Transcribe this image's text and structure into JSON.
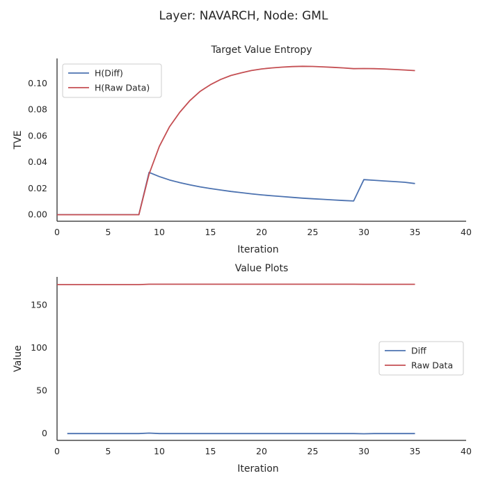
{
  "figure_title": "Layer: NAVARCH, Node: GML",
  "chart_data": [
    {
      "type": "line",
      "title": "Target Value Entropy",
      "xlabel": "Iteration",
      "ylabel": "TVE",
      "xlim": [
        0,
        40
      ],
      "ylim": [
        -0.005,
        0.119
      ],
      "xticks": [
        "0",
        "5",
        "10",
        "15",
        "20",
        "25",
        "30",
        "35",
        "40"
      ],
      "yticks": [
        "0.00",
        "0.02",
        "0.04",
        "0.06",
        "0.08",
        "0.10"
      ],
      "grid": false,
      "legend_position": "upper-left",
      "series": [
        {
          "name": "H(Diff)",
          "color": "#4c72b0",
          "x": [
            0,
            1,
            2,
            3,
            4,
            5,
            6,
            7,
            8,
            9,
            10,
            11,
            12,
            13,
            14,
            15,
            16,
            17,
            18,
            19,
            20,
            21,
            22,
            23,
            24,
            25,
            26,
            27,
            28,
            29,
            30,
            31,
            32,
            33,
            34,
            35
          ],
          "y": [
            0,
            0,
            0,
            0,
            0,
            0,
            0,
            0,
            0,
            0.0322,
            0.029,
            0.0264,
            0.0244,
            0.0227,
            0.0212,
            0.0199,
            0.0188,
            0.0177,
            0.0168,
            0.0159,
            0.0151,
            0.0144,
            0.0138,
            0.0132,
            0.0126,
            0.0121,
            0.0117,
            0.0112,
            0.0108,
            0.0104,
            0.0267,
            0.0262,
            0.0257,
            0.0252,
            0.0247,
            0.0237
          ]
        },
        {
          "name": "H(Raw Data)",
          "color": "#c44e52",
          "x": [
            0,
            1,
            2,
            3,
            4,
            5,
            6,
            7,
            8,
            9,
            10,
            11,
            12,
            13,
            14,
            15,
            16,
            17,
            18,
            19,
            20,
            21,
            22,
            23,
            24,
            25,
            26,
            27,
            28,
            29,
            30,
            31,
            32,
            33,
            34,
            35
          ],
          "y": [
            0,
            0,
            0,
            0,
            0,
            0,
            0,
            0,
            0,
            0.031,
            0.052,
            0.067,
            0.078,
            0.087,
            0.094,
            0.099,
            0.103,
            0.106,
            0.108,
            0.1098,
            0.111,
            0.1118,
            0.1124,
            0.1128,
            0.113,
            0.1129,
            0.1126,
            0.1122,
            0.1118,
            0.1112,
            0.1113,
            0.1112,
            0.111,
            0.1106,
            0.1102,
            0.1097
          ]
        }
      ]
    },
    {
      "type": "line",
      "title": "Value Plots",
      "xlabel": "Iteration",
      "ylabel": "Value",
      "xlim": [
        0,
        40
      ],
      "ylim": [
        -8,
        183
      ],
      "xticks": [
        "0",
        "5",
        "10",
        "15",
        "20",
        "25",
        "30",
        "35",
        "40"
      ],
      "yticks": [
        "0",
        "50",
        "100",
        "150"
      ],
      "grid": false,
      "legend_position": "center-right",
      "series": [
        {
          "name": "Diff",
          "color": "#4c72b0",
          "x": [
            1,
            2,
            3,
            4,
            5,
            6,
            7,
            8,
            9,
            10,
            11,
            12,
            13,
            14,
            15,
            16,
            17,
            18,
            19,
            20,
            21,
            22,
            23,
            24,
            25,
            26,
            27,
            28,
            29,
            30,
            31,
            32,
            33,
            34,
            35
          ],
          "y": [
            0,
            0,
            0,
            0,
            0,
            0,
            0,
            0,
            0.5,
            0,
            0,
            0,
            0,
            0,
            0,
            0,
            0,
            0,
            0,
            0,
            0,
            0,
            0,
            0,
            0,
            0,
            0,
            0,
            0,
            -0.3,
            0,
            0,
            0,
            0,
            0
          ]
        },
        {
          "name": "Raw Data",
          "color": "#c44e52",
          "x": [
            0,
            1,
            2,
            3,
            4,
            5,
            6,
            7,
            8,
            9,
            10,
            11,
            12,
            13,
            14,
            15,
            16,
            17,
            18,
            19,
            20,
            21,
            22,
            23,
            24,
            25,
            26,
            27,
            28,
            29,
            30,
            31,
            32,
            33,
            34,
            35
          ],
          "y": [
            174,
            174,
            174,
            174,
            174,
            174,
            174,
            174,
            174,
            174.5,
            174.5,
            174.5,
            174.5,
            174.5,
            174.5,
            174.5,
            174.5,
            174.5,
            174.5,
            174.5,
            174.5,
            174.5,
            174.5,
            174.5,
            174.5,
            174.5,
            174.5,
            174.5,
            174.5,
            174.5,
            174.4,
            174.4,
            174.4,
            174.4,
            174.4,
            174.4
          ]
        }
      ]
    }
  ]
}
